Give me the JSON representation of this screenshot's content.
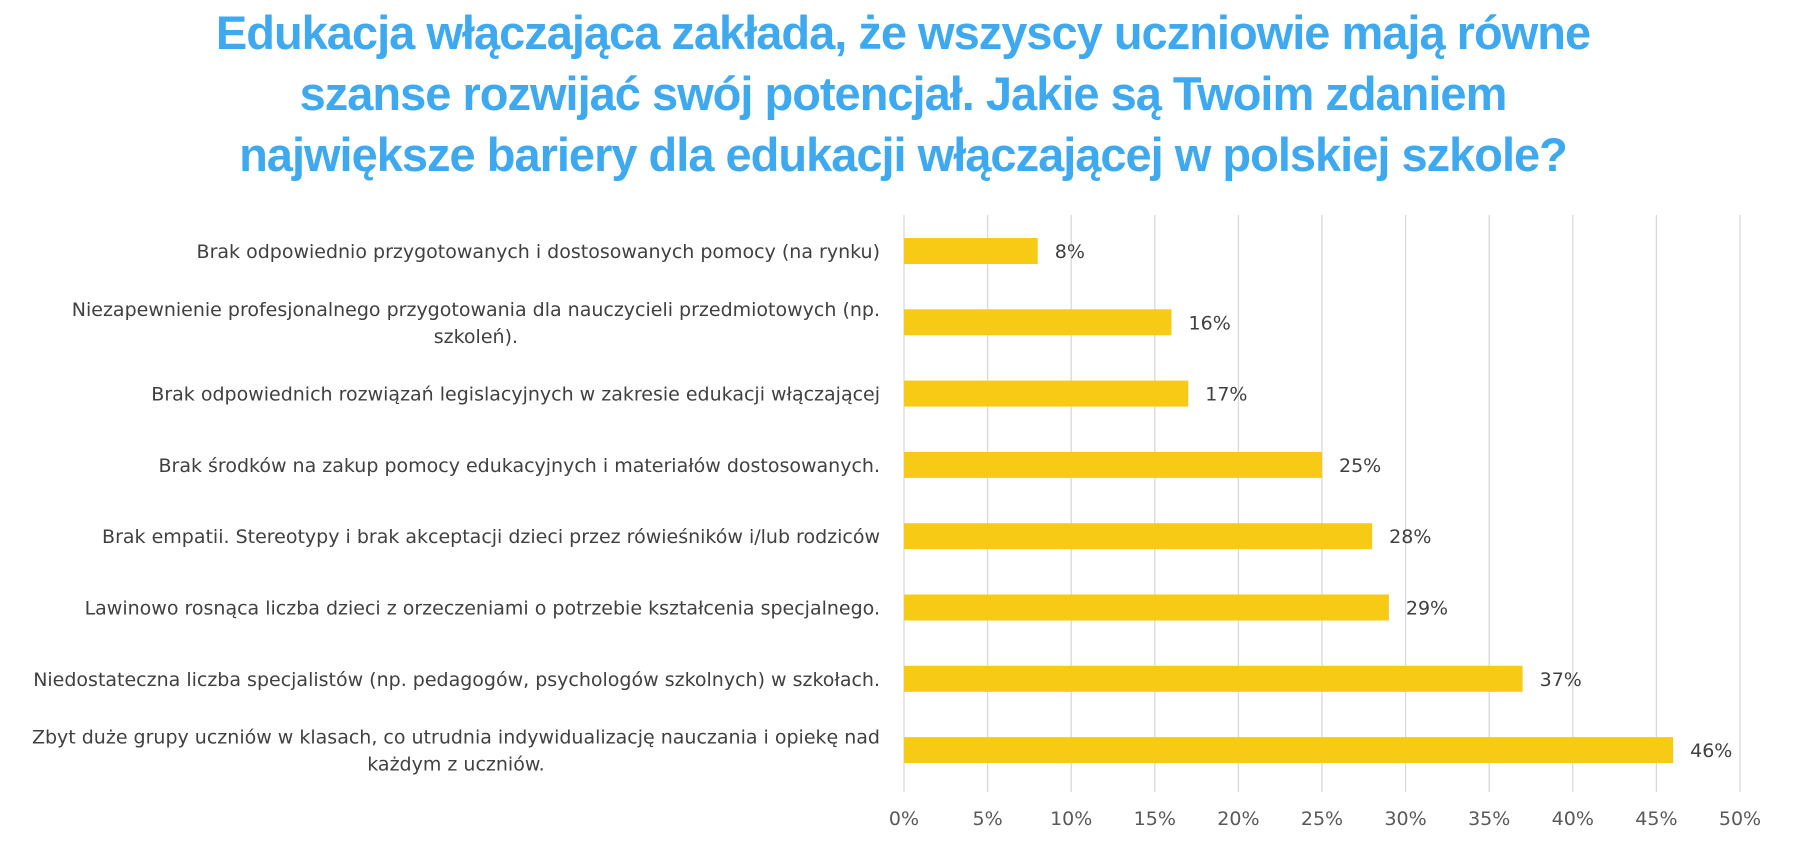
{
  "title_lines": [
    "Edukacja włączająca zakłada, że wszyscy uczniowie mają równe",
    "szanse rozwijać swój potencjał. Jakie są Twoim zdaniem",
    "największe bariery dla edukacji włączającej w polskiej szkole?"
  ],
  "colors": {
    "title": "#3fa9f0",
    "bar": "#f7cb15",
    "grid": "#d9d9d9",
    "text": "#404040"
  },
  "chart_data": {
    "type": "bar",
    "orientation": "horizontal",
    "title": "Edukacja włączająca zakłada, że wszyscy uczniowie mają równe szanse rozwijać swój potencjał. Jakie są Twoim zdaniem największe bariery dla edukacji włączającej w polskiej szkole?",
    "xlabel": "",
    "ylabel": "",
    "xlim": [
      0,
      50
    ],
    "grid": true,
    "legend": "none",
    "categories": [
      [
        "Brak odpowiednio przygotowanych i dostosowanych pomocy (na rynku)"
      ],
      [
        "Niezapewnienie profesjonalnego przygotowania dla nauczycieli przedmiotowych (np.",
        "szkoleń)."
      ],
      [
        "Brak odpowiednich rozwiązań legislacyjnych w zakresie edukacji włączającej"
      ],
      [
        "Brak środków na zakup pomocy edukacyjnych i materiałów dostosowanych."
      ],
      [
        "Brak empatii. Stereotypy i brak akceptacji dzieci przez rówieśników i/lub rodziców"
      ],
      [
        "Lawinowo rosnąca liczba dzieci z orzeczeniami o potrzebie kształcenia specjalnego."
      ],
      [
        "Niedostateczna liczba specjalistów (np. pedagogów, psychologów szkolnych) w szkołach."
      ],
      [
        "Zbyt duże grupy uczniów w klasach, co utrudnia indywidualizację nauczania i opiekę nad",
        "każdym z uczniów."
      ]
    ],
    "values": [
      8,
      16,
      17,
      25,
      28,
      29,
      37,
      46
    ],
    "value_labels": [
      "8%",
      "16%",
      "17%",
      "25%",
      "28%",
      "29%",
      "37%",
      "46%"
    ],
    "ticks": [
      0,
      5,
      10,
      15,
      20,
      25,
      30,
      35,
      40,
      45,
      50
    ],
    "tick_labels": [
      "0%",
      "5%",
      "10%",
      "15%",
      "20%",
      "25%",
      "30%",
      "35%",
      "40%",
      "45%",
      "50%"
    ]
  }
}
